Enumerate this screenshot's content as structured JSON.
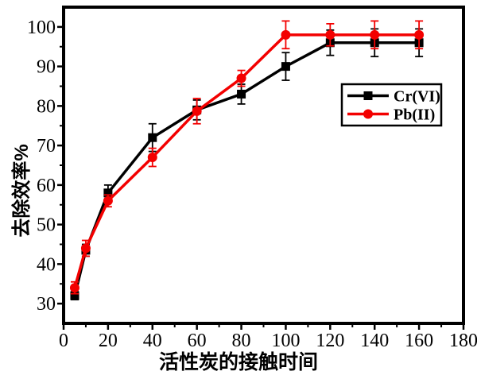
{
  "chart_data": {
    "type": "line",
    "title": "",
    "xlabel": "活性炭的接触时间",
    "ylabel": "去除效率%",
    "x": [
      5,
      10,
      20,
      40,
      60,
      80,
      100,
      120,
      140,
      160
    ],
    "series": [
      {
        "name": "Cr(VI)",
        "color": "#000000",
        "marker": "square",
        "values": [
          32,
          43.5,
          58,
          72,
          79,
          83,
          90,
          96,
          96,
          96
        ],
        "errors": [
          1,
          1.5,
          2,
          3.5,
          2.5,
          2.5,
          3.5,
          3.2,
          3.5,
          3.5
        ]
      },
      {
        "name": "Pb(II)",
        "color": "#F30000",
        "marker": "circle",
        "values": [
          34,
          44,
          56,
          67,
          78.7,
          87,
          98,
          98,
          98,
          98
        ],
        "errors": [
          1.5,
          2,
          1.5,
          2.3,
          3.2,
          2,
          3.5,
          2.8,
          3.5,
          3.5
        ]
      }
    ],
    "xlim": [
      0,
      180
    ],
    "ylim": [
      25,
      105
    ],
    "xticks": [
      0,
      20,
      40,
      60,
      80,
      100,
      120,
      140,
      160,
      180
    ],
    "x_minor_ticks": [
      10,
      30,
      50,
      70,
      90,
      110,
      130,
      150,
      170
    ],
    "yticks": [
      30,
      40,
      50,
      60,
      70,
      80,
      90,
      100
    ],
    "y_minor_ticks": [
      35,
      45,
      55,
      65,
      75,
      85,
      95
    ],
    "grid": false,
    "legend": {
      "position": "middle-right"
    }
  },
  "colors": {
    "background": "#ffffff",
    "frame": "#000000",
    "cr_series": "#000000",
    "pb_series": "#F30000"
  }
}
